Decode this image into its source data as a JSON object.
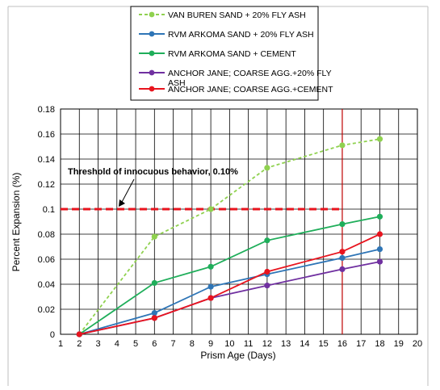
{
  "chart_data": {
    "type": "line",
    "xlabel": "Prism Age (Days)",
    "ylabel": "Percent Expansion (%)",
    "xlim": [
      1,
      20
    ],
    "ylim": [
      0,
      0.18
    ],
    "x_ticks": [
      "1",
      "2",
      "3",
      "4",
      "5",
      "6",
      "7",
      "8",
      "9",
      "10",
      "11",
      "12",
      "13",
      "14",
      "15",
      "16",
      "17",
      "18",
      "19",
      "20"
    ],
    "y_ticks": [
      "0",
      "0.02",
      "0.04",
      "0.06",
      "0.08",
      "0.1",
      "0.12",
      "0.14",
      "0.16",
      "0.18"
    ],
    "grid": true,
    "legend_position": "top",
    "series": [
      {
        "name": "VAN BUREN SAND + 20% FLY ASH",
        "color": "#8fd14f",
        "dashed": true,
        "x": [
          2,
          6,
          9,
          12,
          16,
          18
        ],
        "y": [
          0,
          0.078,
          0.1,
          0.133,
          0.151,
          0.156
        ]
      },
      {
        "name": "RVM ARKOMA SAND + 20% FLY ASH",
        "color": "#2e75b6",
        "dashed": false,
        "x": [
          2,
          6,
          9,
          12,
          16,
          18
        ],
        "y": [
          0,
          0.017,
          0.038,
          0.048,
          0.061,
          0.068
        ]
      },
      {
        "name": "RVM ARKOMA SAND + CEMENT",
        "color": "#1fae5a",
        "dashed": false,
        "x": [
          2,
          6,
          9,
          12,
          16,
          18
        ],
        "y": [
          0,
          0.041,
          0.054,
          0.075,
          0.088,
          0.094
        ]
      },
      {
        "name": "ANCHOR JANE; COARSE AGG.+20% FLY ASH",
        "color": "#7030a0",
        "dashed": false,
        "x": [
          2,
          6,
          9,
          12,
          16,
          18
        ],
        "y": [
          0,
          0.013,
          0.029,
          0.039,
          0.052,
          0.058
        ]
      },
      {
        "name": "ANCHOR JANE; COARSE AGG.+CEMENT",
        "color": "#e8141e",
        "dashed": false,
        "x": [
          2,
          6,
          9,
          12,
          16,
          18
        ],
        "y": [
          0,
          0.013,
          0.029,
          0.05,
          0.066,
          0.08
        ]
      }
    ],
    "threshold": {
      "value": 0.1,
      "label": "Threshold of innocuous behavior, 0.10%",
      "color": "#e8141e"
    },
    "reference_line_x": {
      "value": 16,
      "color": "#c00000"
    }
  }
}
